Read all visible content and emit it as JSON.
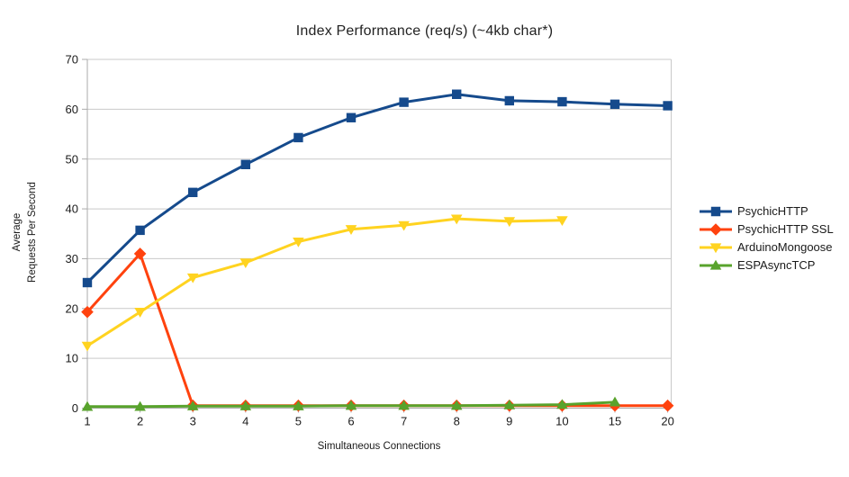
{
  "chart_data": {
    "type": "line",
    "title": "Index Performance (req/s) (~4kb char*)",
    "xlabel": "Simultaneous Connections",
    "ylabel_lines": [
      "Average",
      "Requests Per Second"
    ],
    "categories": [
      "1",
      "2",
      "3",
      "4",
      "5",
      "6",
      "7",
      "8",
      "9",
      "10",
      "15",
      "20"
    ],
    "yticks": [
      0,
      10,
      20,
      30,
      40,
      50,
      60,
      70
    ],
    "ylim": [
      0,
      70
    ],
    "grid": "horizontal",
    "legend_position": "right",
    "series": [
      {
        "name": "PsychicHTTP",
        "color": "#154a8c",
        "marker": "square",
        "values": [
          25.2,
          35.7,
          43.3,
          48.9,
          54.3,
          58.3,
          61.4,
          63.0,
          61.7,
          61.5,
          61.0,
          60.7
        ]
      },
      {
        "name": "PsychicHTTP SSL",
        "color": "#ff420e",
        "marker": "diamond",
        "values": [
          19.3,
          31.0,
          0.5,
          0.5,
          0.5,
          0.5,
          0.5,
          0.5,
          0.5,
          0.5,
          0.5,
          0.5
        ]
      },
      {
        "name": "ArduinoMongoose",
        "color": "#ffd320",
        "marker": "triangle-down",
        "values": [
          12.5,
          19.3,
          26.2,
          29.2,
          33.4,
          35.9,
          36.7,
          38.0,
          37.5,
          37.7,
          null,
          null
        ]
      },
      {
        "name": "ESPAsyncTCP",
        "color": "#58a32c",
        "marker": "triangle-up",
        "values": [
          0.3,
          0.3,
          0.4,
          0.4,
          0.4,
          0.5,
          0.5,
          0.5,
          0.6,
          0.7,
          1.2,
          null
        ]
      }
    ]
  }
}
